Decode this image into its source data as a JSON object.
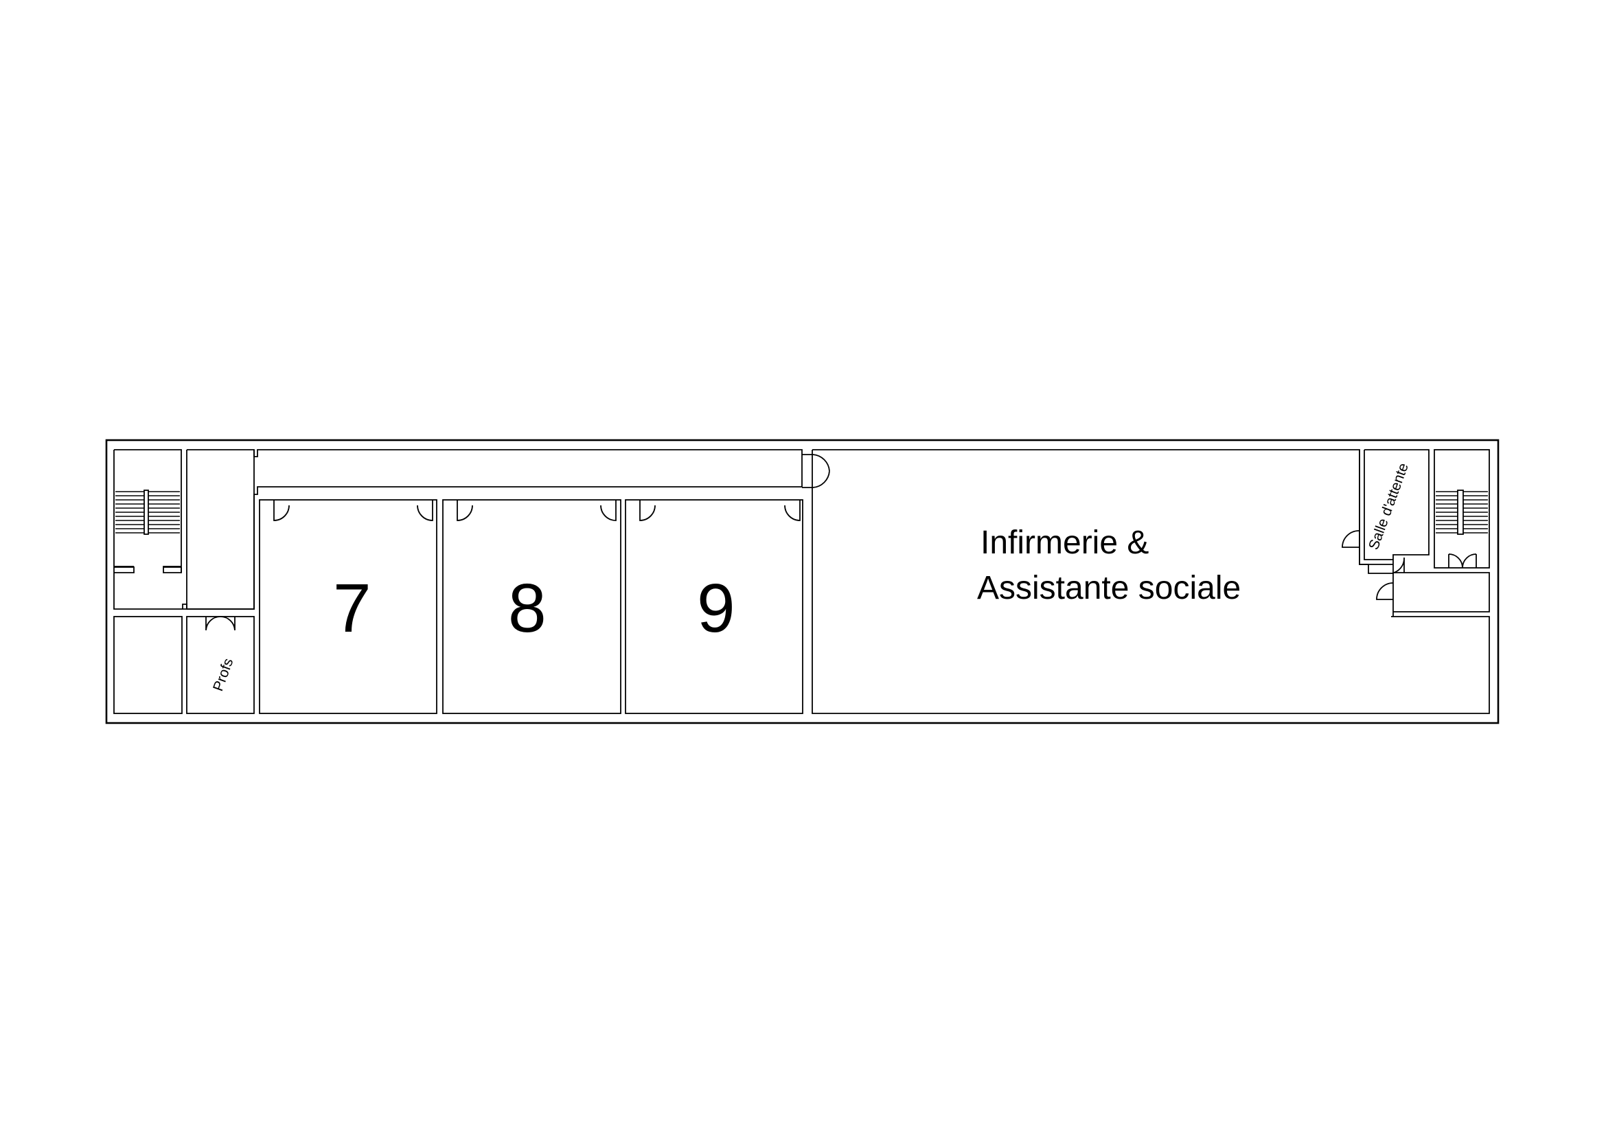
{
  "plan": {
    "rooms": {
      "room7": "7",
      "room8": "8",
      "room9": "9",
      "infirmary_line1": "Infirmerie &",
      "infirmary_line2": "Assistante sociale",
      "profs": "Profs",
      "waiting_room": "Salle d'attente"
    },
    "icons": [
      "stairs-icon",
      "door-icon",
      "double-door-icon"
    ]
  }
}
